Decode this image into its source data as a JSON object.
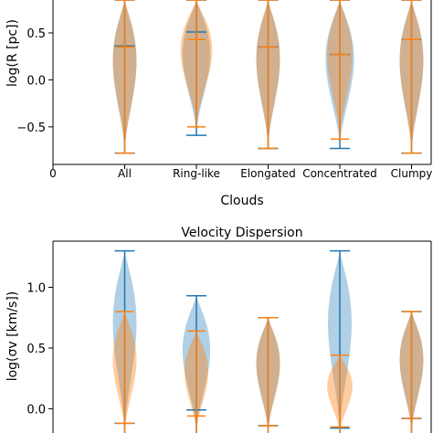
{
  "colors": {
    "blue": "#1f77b4",
    "orange": "#ff7f0e"
  },
  "chart_data": [
    {
      "type": "violin",
      "title": "",
      "xlabel": "Clouds",
      "ylabel": "log(R [pc])",
      "x_tick_labels": [
        "0",
        "All",
        "Ring-like",
        "Elongated",
        "Concentrated",
        "Clumpy"
      ],
      "y_ticks": [
        "−0.5",
        "0.0",
        "0.5"
      ],
      "ylim": [
        -0.9,
        0.85
      ],
      "categories": [
        "All",
        "Ring-like",
        "Elongated",
        "Concentrated",
        "Clumpy"
      ],
      "series": [
        {
          "color": "blue",
          "median": [
            0.36,
            0.51,
            0.35,
            0.27,
            0.43
          ],
          "min": [
            -0.78,
            -0.59,
            -0.73,
            -0.73,
            -0.78
          ],
          "max": [
            0.85,
            0.85,
            0.85,
            0.85,
            0.85
          ],
          "halfwidth": [
            0.3,
            0.35,
            0.3,
            0.36,
            0.3
          ]
        },
        {
          "color": "orange",
          "median": [
            0.35,
            0.43,
            0.35,
            0.27,
            0.43
          ],
          "min": [
            -0.78,
            -0.5,
            -0.73,
            -0.63,
            -0.78
          ],
          "max": [
            0.85,
            0.85,
            0.85,
            0.85,
            0.85
          ],
          "halfwidth": [
            0.3,
            0.4,
            0.3,
            0.32,
            0.3
          ]
        }
      ]
    },
    {
      "type": "violin",
      "title": "Velocity Dispersion",
      "xlabel": "",
      "ylabel": "log(σv [km/s])",
      "y_ticks": [
        "0.0",
        "0.5",
        "1.0"
      ],
      "ylim": [
        -0.2,
        1.38
      ],
      "categories": [
        "All",
        "Ring-like",
        "Elongated",
        "Concentrated",
        "Clumpy"
      ],
      "series": [
        {
          "color": "blue",
          "median": [
            -0.12,
            -0.01,
            -0.14,
            -0.16,
            -0.08
          ],
          "max": [
            1.3,
            0.93,
            0.75,
            1.3,
            0.8
          ],
          "halfwidth": [
            0.3,
            0.35,
            0.3,
            0.3,
            0.3
          ]
        },
        {
          "color": "orange",
          "median": [
            -0.12,
            -0.06,
            -0.14,
            -0.15,
            -0.08
          ],
          "max": [
            0.8,
            0.64,
            0.75,
            0.44,
            0.8
          ],
          "halfwidth": [
            0.3,
            0.3,
            0.3,
            0.32,
            0.3
          ]
        }
      ]
    }
  ]
}
